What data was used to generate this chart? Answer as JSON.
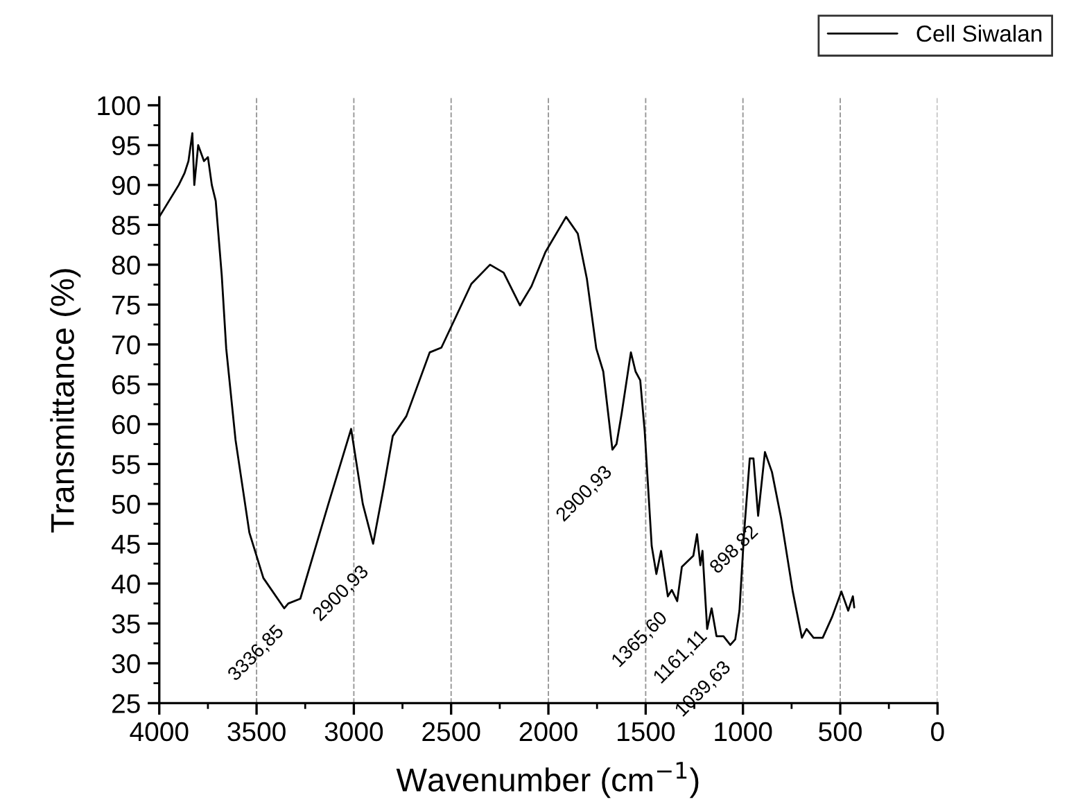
{
  "chart_data": {
    "type": "line",
    "xlabel": "Wavenumber (cm$^{−1}$)",
    "ylabel": "Transmittance (%)",
    "xlim": [
      4000,
      0
    ],
    "xticks": [
      4000,
      3500,
      3000,
      2500,
      2000,
      1500,
      1000,
      500,
      0
    ],
    "ylim": [
      25,
      101
    ],
    "yticks": [
      25,
      30,
      35,
      40,
      45,
      50,
      55,
      60,
      65,
      70,
      75,
      80,
      85,
      90,
      95,
      100
    ],
    "grid": "x",
    "legend": "top right",
    "marker": "none",
    "line_style": "solid",
    "series": [
      {
        "name": "Cell Siwalan",
        "color": "#000000",
        "x": [
          4000,
          3950,
          3900,
          3870,
          3850,
          3830,
          3820,
          3800,
          3770,
          3750,
          3730,
          3710,
          3679,
          3656,
          3608,
          3537,
          3465,
          3358,
          3336.85,
          3275,
          3132,
          3014,
          2954,
          2900.93,
          2847,
          2800,
          2730,
          2610,
          2550,
          2396,
          2300,
          2230,
          2146,
          2087,
          2015,
          1909,
          1849,
          1802,
          1754,
          1718,
          1671,
          1650,
          1623,
          1576,
          1552,
          1528,
          1505,
          1469,
          1445,
          1421,
          1386,
          1365.6,
          1338,
          1314,
          1255,
          1236,
          1219,
          1208,
          1184,
          1161.11,
          1136,
          1100,
          1065,
          1039.63,
          1018,
          994,
          965,
          946,
          922,
          887,
          851,
          804,
          744,
          697,
          673,
          637,
          590,
          542,
          494,
          459,
          435,
          428
        ],
        "values": [
          86,
          88,
          90,
          91.5,
          93,
          96.5,
          90,
          95,
          93,
          93.5,
          90,
          88,
          78.7,
          69.5,
          58,
          46.4,
          40.7,
          36.9,
          37.5,
          38.1,
          49.9,
          59.4,
          50,
          45,
          52,
          58.5,
          61,
          69,
          69.6,
          77.6,
          80,
          79,
          74.9,
          77.3,
          81.6,
          86,
          83.9,
          78.2,
          69.5,
          66.6,
          56.8,
          57.5,
          61.4,
          69,
          66.6,
          65.5,
          59.1,
          44.7,
          41.2,
          44.1,
          38.4,
          39.2,
          37.8,
          42.1,
          43.5,
          46.2,
          42.3,
          44.1,
          34.3,
          36.9,
          33.4,
          33.4,
          32.3,
          33,
          36.6,
          46.4,
          55.7,
          55.7,
          48.5,
          56.5,
          54,
          48.2,
          39,
          33.2,
          34.3,
          33.2,
          33.2,
          35.8,
          39,
          36.6,
          38.4,
          37
        ]
      }
    ],
    "annotations": [
      {
        "text": "3336,85",
        "x": 3336.85,
        "y": 37.5
      },
      {
        "text": "2900,93",
        "x": 2900.93,
        "y": 45
      },
      {
        "text": "2900,93",
        "x": 1650,
        "y": 57.5
      },
      {
        "text": "1365,60",
        "x": 1365.6,
        "y": 39.2
      },
      {
        "text": "1161,11",
        "x": 1161.11,
        "y": 36.9
      },
      {
        "text": "1039,63",
        "x": 1039.63,
        "y": 33
      },
      {
        "text": "898,82",
        "x": 898.82,
        "y": 50
      }
    ]
  }
}
